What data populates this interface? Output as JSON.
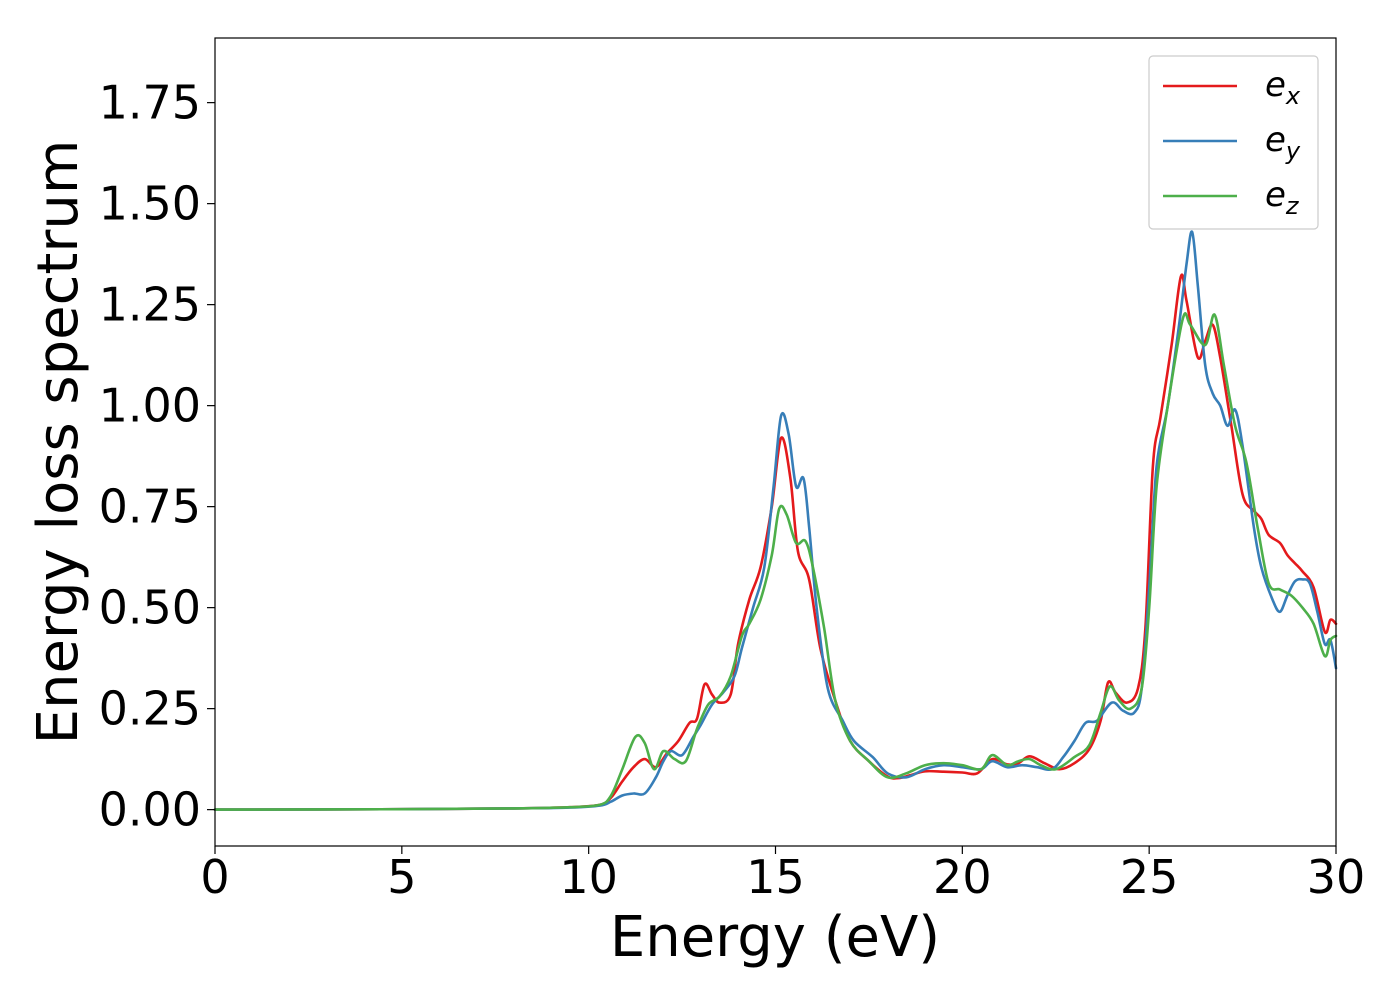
{
  "chart_data": {
    "type": "line",
    "title": "",
    "xlabel": "Energy (eV)",
    "ylabel": "Energy loss spectrum",
    "xlim": [
      0,
      30
    ],
    "ylim": [
      -0.09,
      1.91
    ],
    "xticks": [
      0,
      5,
      10,
      15,
      20,
      25,
      30
    ],
    "xtick_labels": [
      "0",
      "5",
      "10",
      "15",
      "20",
      "25",
      "30"
    ],
    "yticks": [
      0,
      0.25,
      0.5,
      0.75,
      1.0,
      1.25,
      1.5,
      1.75
    ],
    "ytick_labels": [
      "0.00",
      "0.25",
      "0.50",
      "0.75",
      "1.00",
      "1.25",
      "1.50",
      "1.75"
    ],
    "grid": false,
    "legend_position": "top-right",
    "series": [
      {
        "name": "e_x",
        "label_base": "e",
        "label_sub": "x",
        "color": "#e41a1c",
        "points": [
          [
            0,
            0.0
          ],
          [
            5,
            0.001
          ],
          [
            8,
            0.003
          ],
          [
            9.5,
            0.006
          ],
          [
            10.3,
            0.012
          ],
          [
            10.6,
            0.03
          ],
          [
            10.9,
            0.07
          ],
          [
            11.2,
            0.105
          ],
          [
            11.5,
            0.125
          ],
          [
            11.8,
            0.105
          ],
          [
            12.1,
            0.14
          ],
          [
            12.4,
            0.17
          ],
          [
            12.7,
            0.215
          ],
          [
            12.9,
            0.225
          ],
          [
            13.1,
            0.31
          ],
          [
            13.3,
            0.285
          ],
          [
            13.5,
            0.265
          ],
          [
            13.8,
            0.285
          ],
          [
            14.0,
            0.41
          ],
          [
            14.3,
            0.52
          ],
          [
            14.6,
            0.6
          ],
          [
            14.9,
            0.75
          ],
          [
            15.15,
            0.92
          ],
          [
            15.4,
            0.82
          ],
          [
            15.6,
            0.64
          ],
          [
            15.9,
            0.57
          ],
          [
            16.2,
            0.4
          ],
          [
            16.6,
            0.27
          ],
          [
            17.0,
            0.17
          ],
          [
            17.5,
            0.12
          ],
          [
            18.0,
            0.082
          ],
          [
            18.3,
            0.078
          ],
          [
            18.6,
            0.085
          ],
          [
            19.0,
            0.095
          ],
          [
            19.5,
            0.094
          ],
          [
            20.0,
            0.092
          ],
          [
            20.4,
            0.09
          ],
          [
            20.8,
            0.125
          ],
          [
            21.2,
            0.112
          ],
          [
            21.5,
            0.115
          ],
          [
            21.8,
            0.132
          ],
          [
            22.2,
            0.115
          ],
          [
            22.6,
            0.1
          ],
          [
            23.0,
            0.115
          ],
          [
            23.4,
            0.15
          ],
          [
            23.7,
            0.22
          ],
          [
            23.9,
            0.315
          ],
          [
            24.1,
            0.29
          ],
          [
            24.4,
            0.265
          ],
          [
            24.7,
            0.3
          ],
          [
            24.9,
            0.45
          ],
          [
            25.1,
            0.85
          ],
          [
            25.3,
            0.97
          ],
          [
            25.6,
            1.15
          ],
          [
            25.85,
            1.32
          ],
          [
            26.0,
            1.26
          ],
          [
            26.3,
            1.12
          ],
          [
            26.5,
            1.16
          ],
          [
            26.7,
            1.2
          ],
          [
            26.9,
            1.12
          ],
          [
            27.2,
            0.95
          ],
          [
            27.5,
            0.78
          ],
          [
            27.8,
            0.74
          ],
          [
            28.0,
            0.72
          ],
          [
            28.2,
            0.68
          ],
          [
            28.5,
            0.66
          ],
          [
            28.7,
            0.63
          ],
          [
            28.9,
            0.61
          ],
          [
            29.1,
            0.59
          ],
          [
            29.4,
            0.55
          ],
          [
            29.7,
            0.44
          ],
          [
            29.85,
            0.47
          ],
          [
            30.0,
            0.46
          ]
        ]
      },
      {
        "name": "e_y",
        "label_base": "e",
        "label_sub": "y",
        "color": "#377eb8",
        "points": [
          [
            0,
            0.0
          ],
          [
            5,
            0.001
          ],
          [
            8,
            0.003
          ],
          [
            9.5,
            0.005
          ],
          [
            10.3,
            0.01
          ],
          [
            10.6,
            0.02
          ],
          [
            10.9,
            0.035
          ],
          [
            11.2,
            0.04
          ],
          [
            11.5,
            0.04
          ],
          [
            11.8,
            0.08
          ],
          [
            12.0,
            0.12
          ],
          [
            12.2,
            0.145
          ],
          [
            12.5,
            0.135
          ],
          [
            12.8,
            0.18
          ],
          [
            13.0,
            0.21
          ],
          [
            13.3,
            0.26
          ],
          [
            13.6,
            0.29
          ],
          [
            13.9,
            0.33
          ],
          [
            14.1,
            0.4
          ],
          [
            14.4,
            0.5
          ],
          [
            14.7,
            0.6
          ],
          [
            14.95,
            0.8
          ],
          [
            15.15,
            0.975
          ],
          [
            15.35,
            0.93
          ],
          [
            15.55,
            0.8
          ],
          [
            15.75,
            0.82
          ],
          [
            15.9,
            0.7
          ],
          [
            16.1,
            0.5
          ],
          [
            16.4,
            0.3
          ],
          [
            16.8,
            0.22
          ],
          [
            17.1,
            0.17
          ],
          [
            17.6,
            0.13
          ],
          [
            18.0,
            0.09
          ],
          [
            18.5,
            0.08
          ],
          [
            19.0,
            0.1
          ],
          [
            19.5,
            0.11
          ],
          [
            20.0,
            0.105
          ],
          [
            20.5,
            0.1
          ],
          [
            20.8,
            0.12
          ],
          [
            21.2,
            0.105
          ],
          [
            21.6,
            0.11
          ],
          [
            22.0,
            0.105
          ],
          [
            22.4,
            0.1
          ],
          [
            22.7,
            0.13
          ],
          [
            23.0,
            0.17
          ],
          [
            23.3,
            0.215
          ],
          [
            23.6,
            0.22
          ],
          [
            24.0,
            0.265
          ],
          [
            24.3,
            0.245
          ],
          [
            24.6,
            0.24
          ],
          [
            24.8,
            0.3
          ],
          [
            25.0,
            0.55
          ],
          [
            25.2,
            0.85
          ],
          [
            25.5,
            1.0
          ],
          [
            25.8,
            1.2
          ],
          [
            26.0,
            1.35
          ],
          [
            26.15,
            1.43
          ],
          [
            26.3,
            1.3
          ],
          [
            26.5,
            1.1
          ],
          [
            26.7,
            1.03
          ],
          [
            26.9,
            1.0
          ],
          [
            27.1,
            0.95
          ],
          [
            27.3,
            0.99
          ],
          [
            27.5,
            0.9
          ],
          [
            27.8,
            0.7
          ],
          [
            28.0,
            0.6
          ],
          [
            28.3,
            0.52
          ],
          [
            28.5,
            0.49
          ],
          [
            28.7,
            0.53
          ],
          [
            28.9,
            0.565
          ],
          [
            29.1,
            0.57
          ],
          [
            29.3,
            0.56
          ],
          [
            29.5,
            0.49
          ],
          [
            29.7,
            0.41
          ],
          [
            29.85,
            0.42
          ],
          [
            30.0,
            0.35
          ]
        ]
      },
      {
        "name": "e_z",
        "label_base": "e",
        "label_sub": "z",
        "color": "#4daf4a",
        "points": [
          [
            0,
            0.0
          ],
          [
            5,
            0.001
          ],
          [
            8,
            0.003
          ],
          [
            9.5,
            0.006
          ],
          [
            10.3,
            0.012
          ],
          [
            10.6,
            0.035
          ],
          [
            10.9,
            0.1
          ],
          [
            11.25,
            0.18
          ],
          [
            11.5,
            0.165
          ],
          [
            11.75,
            0.1
          ],
          [
            12.0,
            0.145
          ],
          [
            12.3,
            0.125
          ],
          [
            12.6,
            0.12
          ],
          [
            12.9,
            0.2
          ],
          [
            13.2,
            0.26
          ],
          [
            13.5,
            0.28
          ],
          [
            13.8,
            0.33
          ],
          [
            14.1,
            0.43
          ],
          [
            14.3,
            0.46
          ],
          [
            14.6,
            0.52
          ],
          [
            14.9,
            0.63
          ],
          [
            15.1,
            0.745
          ],
          [
            15.3,
            0.73
          ],
          [
            15.55,
            0.66
          ],
          [
            15.8,
            0.665
          ],
          [
            16.0,
            0.6
          ],
          [
            16.3,
            0.45
          ],
          [
            16.6,
            0.27
          ],
          [
            17.0,
            0.17
          ],
          [
            17.5,
            0.12
          ],
          [
            18.0,
            0.08
          ],
          [
            18.5,
            0.09
          ],
          [
            19.0,
            0.11
          ],
          [
            19.5,
            0.115
          ],
          [
            20.0,
            0.11
          ],
          [
            20.5,
            0.1
          ],
          [
            20.8,
            0.135
          ],
          [
            21.2,
            0.11
          ],
          [
            21.5,
            0.12
          ],
          [
            21.8,
            0.125
          ],
          [
            22.1,
            0.11
          ],
          [
            22.5,
            0.1
          ],
          [
            23.0,
            0.13
          ],
          [
            23.4,
            0.16
          ],
          [
            23.7,
            0.24
          ],
          [
            23.95,
            0.305
          ],
          [
            24.2,
            0.27
          ],
          [
            24.5,
            0.25
          ],
          [
            24.8,
            0.3
          ],
          [
            25.0,
            0.5
          ],
          [
            25.2,
            0.8
          ],
          [
            25.5,
            1.0
          ],
          [
            25.9,
            1.215
          ],
          [
            26.1,
            1.2
          ],
          [
            26.5,
            1.15
          ],
          [
            26.75,
            1.225
          ],
          [
            27.0,
            1.1
          ],
          [
            27.3,
            0.95
          ],
          [
            27.6,
            0.86
          ],
          [
            27.9,
            0.7
          ],
          [
            28.2,
            0.56
          ],
          [
            28.5,
            0.545
          ],
          [
            28.8,
            0.53
          ],
          [
            29.1,
            0.5
          ],
          [
            29.4,
            0.46
          ],
          [
            29.7,
            0.38
          ],
          [
            29.85,
            0.42
          ],
          [
            30.0,
            0.43
          ]
        ]
      }
    ]
  }
}
